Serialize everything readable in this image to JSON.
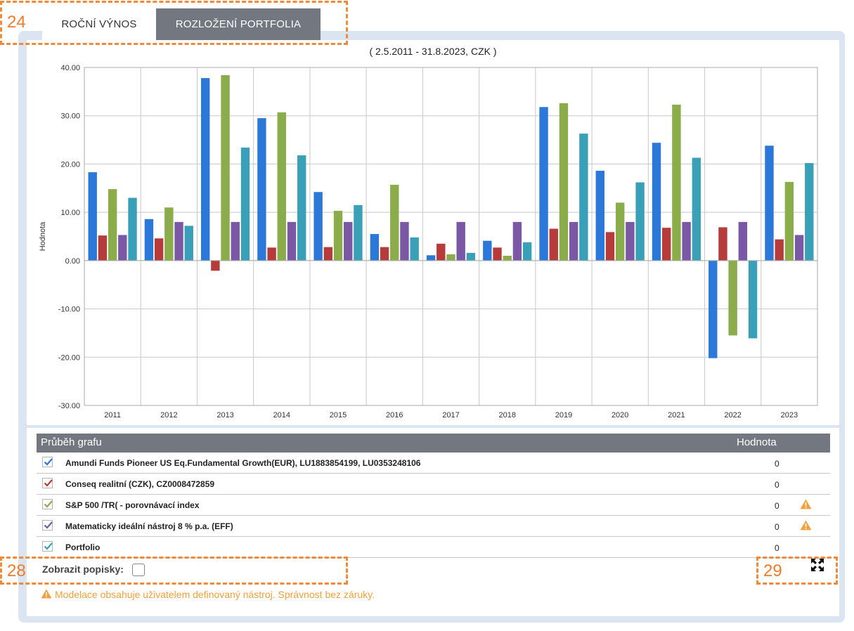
{
  "tabs": [
    {
      "label": "ROČNÍ VÝNOS",
      "active": true
    },
    {
      "label": "ROZLOŽENÍ PORTFOLIA",
      "active": false
    }
  ],
  "chart_subtitle": "( 2.5.2011 - 31.8.2023, CZK )",
  "chart_data": {
    "type": "bar",
    "title": "",
    "subtitle": "( 2.5.2011 - 31.8.2023, CZK )",
    "xlabel": "",
    "ylabel": "Hodnota",
    "ylim": [
      -30,
      40
    ],
    "yticks": [
      "40.00",
      "30.00",
      "20.00",
      "10.00",
      "0.00",
      "-10.00",
      "-20.00",
      "-30.00"
    ],
    "grid": true,
    "categories": [
      "2011",
      "2012",
      "2013",
      "2014",
      "2015",
      "2016",
      "2017",
      "2018",
      "2019",
      "2020",
      "2021",
      "2022",
      "2023"
    ],
    "series": [
      {
        "name": "Amundi Funds Pioneer US Eq.Fundamental Growth(EUR), LU1883854199, LU0353248106",
        "color": "#2b78d8",
        "values": [
          18.3,
          8.6,
          37.8,
          29.5,
          14.2,
          5.5,
          1.1,
          4.1,
          31.8,
          18.6,
          24.4,
          -20.2,
          23.8
        ]
      },
      {
        "name": "Conseq realitní (CZK), CZ0008472859",
        "color": "#b63c3c",
        "values": [
          5.2,
          4.6,
          -2.1,
          2.7,
          2.8,
          2.8,
          3.5,
          2.7,
          6.6,
          5.9,
          6.8,
          6.9,
          4.4
        ]
      },
      {
        "name": "S&P 500 /TR( - porovnávací index",
        "color": "#8aac4a",
        "values": [
          14.8,
          11.0,
          38.4,
          30.7,
          10.3,
          15.7,
          1.3,
          1.0,
          32.6,
          12.0,
          32.3,
          -15.5,
          16.3
        ]
      },
      {
        "name": "Matematicky ideální nástroj 8 % p.a. (EFF)",
        "color": "#7a58a6",
        "values": [
          5.3,
          8.0,
          8.0,
          8.0,
          8.0,
          8.0,
          8.0,
          8.0,
          8.0,
          8.0,
          8.0,
          8.0,
          5.3
        ]
      },
      {
        "name": "Portfolio",
        "color": "#3aa0b8",
        "values": [
          13.0,
          7.2,
          23.4,
          21.8,
          11.5,
          4.8,
          1.6,
          3.8,
          26.3,
          16.2,
          21.3,
          -16.1,
          20.2
        ]
      }
    ]
  },
  "legend": {
    "header_left": "Průběh grafu",
    "header_right": "Hodnota",
    "rows": [
      {
        "name": "Amundi Funds Pioneer US Eq.Fundamental Growth(EUR), LU1883854199, LU0353248106",
        "value": "0",
        "color": "#2b78d8",
        "warning": false
      },
      {
        "name": "Conseq realitní (CZK), CZ0008472859",
        "value": "0",
        "color": "#b63c3c",
        "warning": false
      },
      {
        "name": "S&P 500 /TR( - porovnávací index",
        "value": "0",
        "color": "#8aac4a",
        "warning": true
      },
      {
        "name": "Matematicky ideální nástroj 8 % p.a. (EFF)",
        "value": "0",
        "color": "#7a58a6",
        "warning": true
      },
      {
        "name": "Portfolio",
        "value": "0",
        "color": "#3aa0b8",
        "warning": false
      }
    ]
  },
  "show_labels": {
    "label": "Zobrazit popisky:",
    "checked": false
  },
  "note": "Modelace obsahuje uživatelem definovaný nástroj. Správnost bez záruky.",
  "icons": {
    "warning": "warning-triangle-icon",
    "expand": "expand-fullscreen-icon",
    "check": "checkmark-icon"
  },
  "annotations": [
    "24",
    "28",
    "29"
  ],
  "colors": {
    "accent_orange": "#ef8a3a",
    "tab_gray": "#737880",
    "panel_bg": "#dbe5f1",
    "warning": "#f0a03c"
  }
}
